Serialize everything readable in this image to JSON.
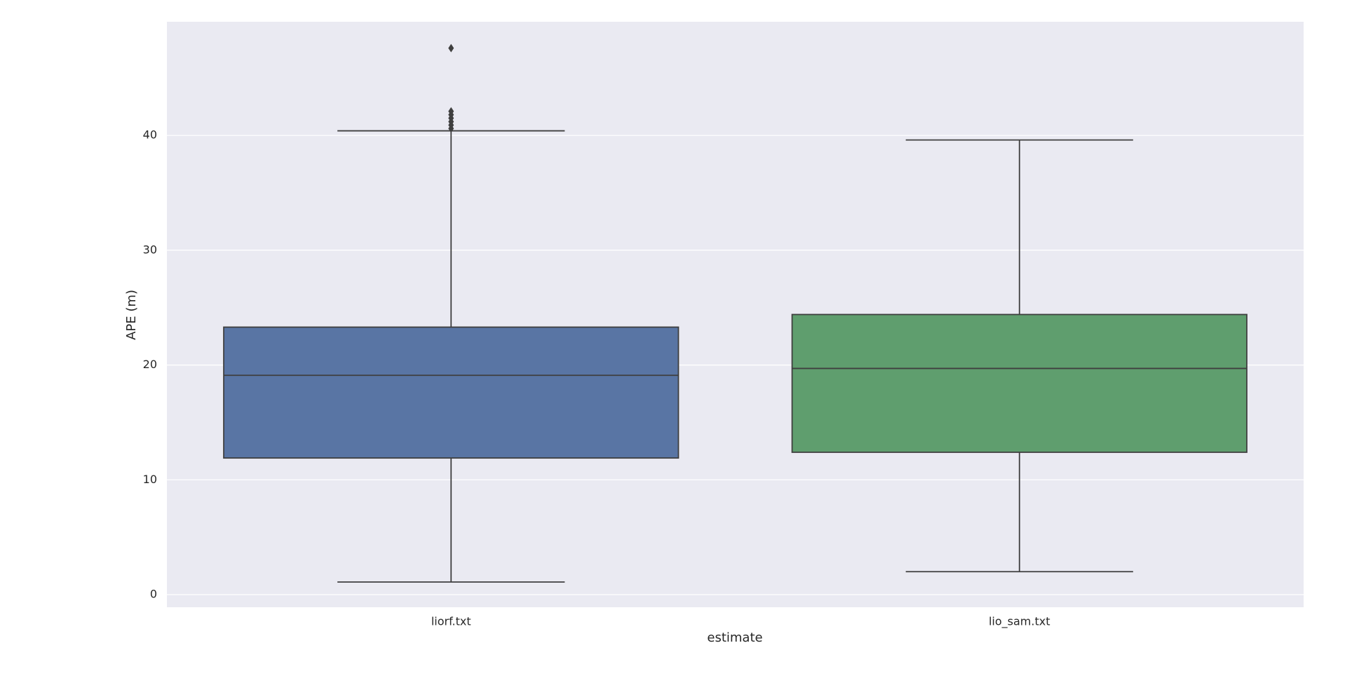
{
  "chart_data": {
    "type": "box",
    "xlabel": "estimate",
    "ylabel": "APE (m)",
    "categories": [
      "liorf.txt",
      "lio_sam.txt"
    ],
    "boxes": [
      {
        "color": "#5975a4",
        "whislo": 1.1,
        "q1": 11.9,
        "med": 19.1,
        "q3": 23.3,
        "whishi": 40.4,
        "fliers": [
          40.6,
          40.9,
          41.2,
          41.5,
          41.8,
          42.1,
          47.6
        ]
      },
      {
        "color": "#5f9e6e",
        "whislo": 2.0,
        "q1": 12.4,
        "med": 19.7,
        "q3": 24.4,
        "whishi": 39.6,
        "fliers": []
      }
    ],
    "ylim": [
      -1.1,
      49.9
    ],
    "yticks": [
      0,
      10,
      20,
      30,
      40
    ],
    "grid": true
  }
}
